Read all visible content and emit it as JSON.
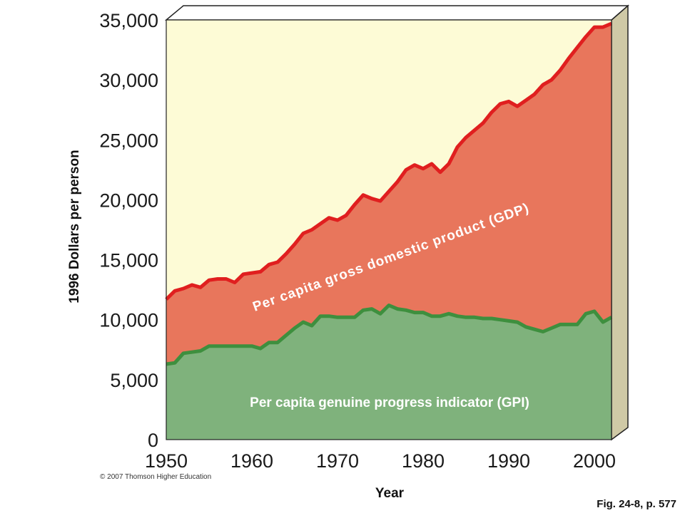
{
  "chart_data": {
    "type": "area",
    "ylabel": "1996 Dollars per person",
    "xlabel": "Year",
    "xlim": [
      1950,
      2002
    ],
    "ylim": [
      0,
      35000
    ],
    "x_ticks": [
      "1950",
      "1960",
      "1970",
      "1980",
      "1990",
      "2000"
    ],
    "y_ticks": [
      "0",
      "5,000",
      "10,000",
      "15,000",
      "20,000",
      "25,000",
      "30,000",
      "35,000"
    ],
    "grid": false,
    "series": [
      {
        "name": "Per capita gross domestic product (GDP)",
        "color": "#e8765c",
        "line_color": "#e01f1f",
        "x": [
          1950,
          1951,
          1952,
          1953,
          1954,
          1955,
          1956,
          1957,
          1958,
          1959,
          1960,
          1961,
          1962,
          1963,
          1964,
          1965,
          1966,
          1967,
          1968,
          1969,
          1970,
          1971,
          1972,
          1973,
          1974,
          1975,
          1976,
          1977,
          1978,
          1979,
          1980,
          1981,
          1982,
          1983,
          1984,
          1985,
          1986,
          1987,
          1988,
          1989,
          1990,
          1991,
          1992,
          1993,
          1994,
          1995,
          1996,
          1997,
          1998,
          1999,
          2000,
          2001,
          2002
        ],
        "values": [
          11700,
          12400,
          12600,
          12900,
          12700,
          13300,
          13400,
          13400,
          13100,
          13800,
          13900,
          14000,
          14600,
          14800,
          15500,
          16300,
          17200,
          17500,
          18000,
          18500,
          18300,
          18700,
          19600,
          20400,
          20100,
          19900,
          20700,
          21500,
          22500,
          22900,
          22600,
          23000,
          22300,
          23000,
          24400,
          25200,
          25800,
          26400,
          27300,
          28000,
          28200,
          27800,
          28300,
          28800,
          29600,
          30000,
          30800,
          31800,
          32700,
          33600,
          34400,
          34400,
          34700
        ]
      },
      {
        "name": "Per capita genuine progress indicator (GPI)",
        "color": "#7fb27c",
        "line_color": "#3e8f3e",
        "x": [
          1950,
          1951,
          1952,
          1953,
          1954,
          1955,
          1956,
          1957,
          1958,
          1959,
          1960,
          1961,
          1962,
          1963,
          1964,
          1965,
          1966,
          1967,
          1968,
          1969,
          1970,
          1971,
          1972,
          1973,
          1974,
          1975,
          1976,
          1977,
          1978,
          1979,
          1980,
          1981,
          1982,
          1983,
          1984,
          1985,
          1986,
          1987,
          1988,
          1989,
          1990,
          1991,
          1992,
          1993,
          1994,
          1995,
          1996,
          1997,
          1998,
          1999,
          2000,
          2001,
          2002
        ],
        "values": [
          6300,
          6400,
          7200,
          7300,
          7400,
          7800,
          7800,
          7800,
          7800,
          7800,
          7800,
          7600,
          8100,
          8100,
          8700,
          9300,
          9800,
          9500,
          10300,
          10300,
          10200,
          10200,
          10200,
          10800,
          10900,
          10500,
          11200,
          10900,
          10800,
          10600,
          10600,
          10300,
          10300,
          10500,
          10300,
          10200,
          10200,
          10100,
          10100,
          10000,
          9900,
          9800,
          9400,
          9200,
          9000,
          9300,
          9600,
          9600,
          9600,
          10500,
          10700,
          9800,
          10200
        ]
      }
    ],
    "background_color": "#fdfbd6"
  },
  "copyright": "© 2007 Thomson Higher Education",
  "figure_ref": "Fig. 24-8, p. 577"
}
